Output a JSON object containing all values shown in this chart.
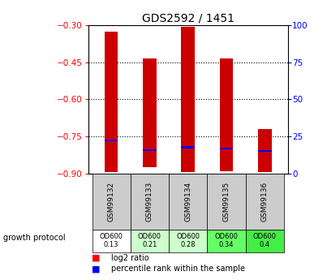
{
  "title": "GDS2592 / 1451",
  "samples": [
    "GSM99132",
    "GSM99133",
    "GSM99134",
    "GSM99135",
    "GSM99136"
  ],
  "log2_ratio_top": [
    -0.325,
    -0.435,
    -0.305,
    -0.435,
    -0.72
  ],
  "log2_ratio_bottom": [
    -0.895,
    -0.875,
    -0.895,
    -0.89,
    -0.895
  ],
  "percentile_rank_y": [
    -0.766,
    -0.806,
    -0.794,
    -0.798,
    -0.808
  ],
  "ylim": [
    -0.9,
    -0.3
  ],
  "yticks_left": [
    -0.9,
    -0.75,
    -0.6,
    -0.45,
    -0.3
  ],
  "yticks_right": [
    0,
    25,
    50,
    75,
    100
  ],
  "bar_color": "#cc0000",
  "blue_color": "#0000ee",
  "growth_protocol_labels": [
    "OD600\n0.13",
    "OD600\n0.21",
    "OD600\n0.28",
    "OD600\n0.34",
    "OD600\n0.4"
  ],
  "growth_bg_colors": [
    "#ffffff",
    "#ccffcc",
    "#ccffcc",
    "#66ff66",
    "#44ee44"
  ],
  "sample_label_bg": "#cccccc",
  "bar_width": 0.35,
  "figsize": [
    4.03,
    3.45
  ],
  "dpi": 100
}
